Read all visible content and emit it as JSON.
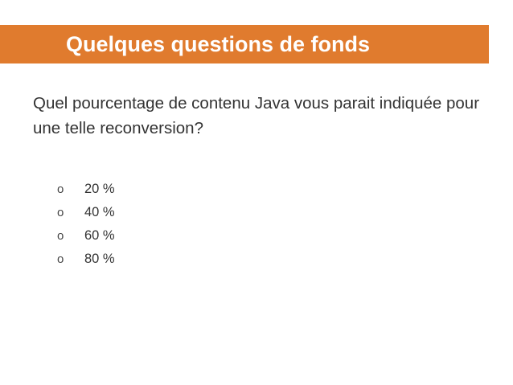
{
  "slide": {
    "title": "Quelques questions de fonds",
    "question": "Quel pourcentage de contenu Java vous parait indiquée pour une telle reconversion?",
    "bullet_glyph": "o",
    "options": [
      {
        "label": "20 %"
      },
      {
        "label": "40 %"
      },
      {
        "label": "60 %"
      },
      {
        "label": "80 %"
      }
    ]
  },
  "colors": {
    "title_bar": "#e07b2e",
    "title_text": "#ffffff",
    "body_text": "#333333"
  }
}
